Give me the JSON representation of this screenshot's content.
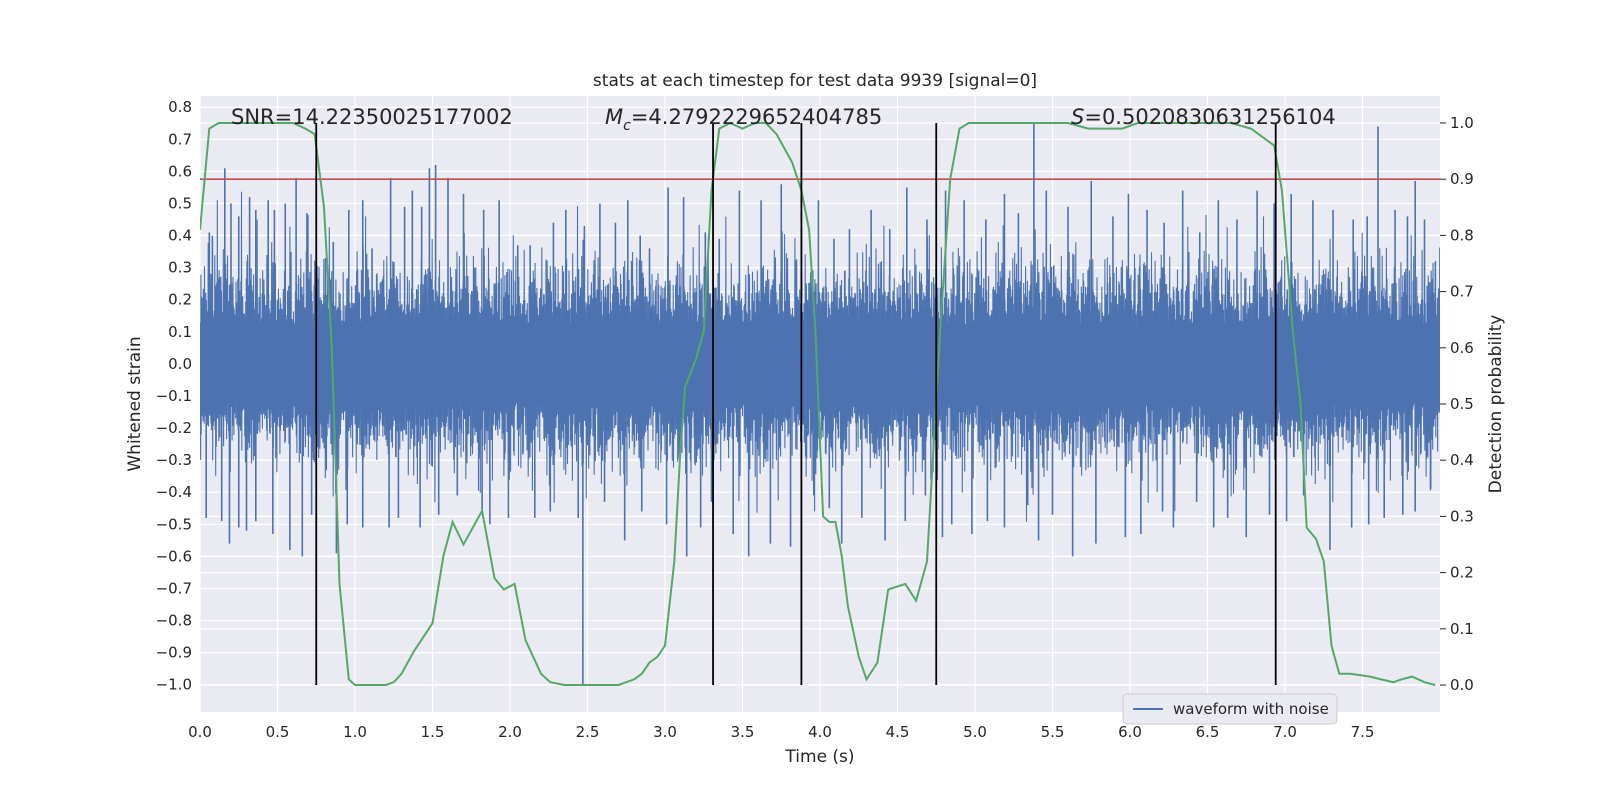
{
  "chart_data": {
    "type": "line",
    "title": "stats at each timestep for test data 9939 [signal=0]",
    "xlabel": "Time (s)",
    "ylabel": "Whitened strain",
    "y2label": "Detection probability",
    "xlim": [
      0.0,
      8.0
    ],
    "ylim": [
      -1.085,
      0.835
    ],
    "y2lim": [
      -0.048,
      1.048
    ],
    "xticks": [
      0.0,
      0.5,
      1.0,
      1.5,
      2.0,
      2.5,
      3.0,
      3.5,
      4.0,
      4.5,
      5.0,
      5.5,
      6.0,
      6.5,
      7.0,
      7.5
    ],
    "xtick_labels": [
      "0.0",
      "0.5",
      "1.0",
      "1.5",
      "2.0",
      "2.5",
      "3.0",
      "3.5",
      "4.0",
      "4.5",
      "5.0",
      "5.5",
      "6.0",
      "6.5",
      "7.0",
      "7.5"
    ],
    "yticks": [
      0.8,
      0.7,
      0.6,
      0.5,
      0.4,
      0.3,
      0.2,
      0.1,
      0.0,
      -0.1,
      -0.2,
      -0.3,
      -0.4,
      -0.5,
      -0.6,
      -0.7,
      -0.8,
      -0.9,
      -1.0
    ],
    "ytick_labels": [
      "0.8",
      "0.7",
      "0.6",
      "0.5",
      "0.4",
      "0.3",
      "0.2",
      "0.1",
      "0.0",
      "−0.1",
      "−0.2",
      "−0.3",
      "−0.4",
      "−0.5",
      "−0.6",
      "−0.7",
      "−0.8",
      "−0.9",
      "−1.0"
    ],
    "y2ticks": [
      1.0,
      0.9,
      0.8,
      0.7,
      0.6,
      0.5,
      0.4,
      0.3,
      0.2,
      0.1,
      0.0
    ],
    "y2tick_labels": [
      "1.0",
      "0.9",
      "0.8",
      "0.7",
      "0.6",
      "0.5",
      "0.4",
      "0.3",
      "0.2",
      "0.1",
      "0.0"
    ],
    "grid": true,
    "annotations": {
      "snr": "SNR=14.22350025177002",
      "mc_symbol": "M",
      "mc_subscript": "c",
      "mc_value": "=4.279222965240478 5",
      "s_symbol": "S",
      "s_value": "=0.5020830631256104"
    },
    "waveform": {
      "name": "waveform with noise",
      "color": "#4c72b0",
      "core_amplitude": 0.22,
      "seed": 9939,
      "spikes_up": [
        [
          0.06,
          0.41
        ],
        [
          0.08,
          0.4
        ],
        [
          0.16,
          0.61
        ],
        [
          0.2,
          0.5
        ],
        [
          0.25,
          0.46
        ],
        [
          0.32,
          0.52
        ],
        [
          0.36,
          0.48
        ],
        [
          0.44,
          0.51
        ],
        [
          0.48,
          0.48
        ],
        [
          0.55,
          0.5
        ],
        [
          0.62,
          0.58
        ],
        [
          0.69,
          0.47
        ],
        [
          0.81,
          0.33
        ],
        [
          0.86,
          0.38
        ],
        [
          0.96,
          0.48
        ],
        [
          1.05,
          0.51
        ],
        [
          1.11,
          0.36
        ],
        [
          1.23,
          0.58
        ],
        [
          1.32,
          0.49
        ],
        [
          1.37,
          0.54
        ],
        [
          1.43,
          0.49
        ],
        [
          1.48,
          0.61
        ],
        [
          1.52,
          0.62
        ],
        [
          1.6,
          0.58
        ],
        [
          1.7,
          0.53
        ],
        [
          1.83,
          0.48
        ],
        [
          1.93,
          0.51
        ],
        [
          2.05,
          0.37
        ],
        [
          2.13,
          0.37
        ],
        [
          2.28,
          0.44
        ],
        [
          2.36,
          0.48
        ],
        [
          2.48,
          0.43
        ],
        [
          2.58,
          0.5
        ],
        [
          2.68,
          0.44
        ],
        [
          2.76,
          0.51
        ],
        [
          2.84,
          0.4
        ],
        [
          2.9,
          0.36
        ],
        [
          3.02,
          0.55
        ],
        [
          3.12,
          0.52
        ],
        [
          3.26,
          0.41
        ],
        [
          3.35,
          0.39
        ],
        [
          3.48,
          0.54
        ],
        [
          3.62,
          0.51
        ],
        [
          3.75,
          0.56
        ],
        [
          3.88,
          0.48
        ],
        [
          3.99,
          0.51
        ],
        [
          4.09,
          0.39
        ],
        [
          4.19,
          0.42
        ],
        [
          4.33,
          0.48
        ],
        [
          4.45,
          0.42
        ],
        [
          4.56,
          0.55
        ],
        [
          4.69,
          0.45
        ],
        [
          4.81,
          0.54
        ],
        [
          4.93,
          0.51
        ],
        [
          5.07,
          0.45
        ],
        [
          5.19,
          0.53
        ],
        [
          5.28,
          0.47
        ],
        [
          5.38,
          0.75
        ],
        [
          5.46,
          0.54
        ],
        [
          5.6,
          0.49
        ],
        [
          5.75,
          0.57
        ],
        [
          5.89,
          0.46
        ],
        [
          5.99,
          0.53
        ],
        [
          6.11,
          0.48
        ],
        [
          6.22,
          0.44
        ],
        [
          6.34,
          0.54
        ],
        [
          6.45,
          0.41
        ],
        [
          6.57,
          0.51
        ],
        [
          6.69,
          0.45
        ],
        [
          6.82,
          0.54
        ],
        [
          6.93,
          0.5
        ],
        [
          7.04,
          0.53
        ],
        [
          7.18,
          0.51
        ],
        [
          7.31,
          0.48
        ],
        [
          7.44,
          0.45
        ],
        [
          7.53,
          0.46
        ],
        [
          7.6,
          0.74
        ],
        [
          7.71,
          0.48
        ],
        [
          7.79,
          0.46
        ],
        [
          7.84,
          0.57
        ],
        [
          7.9,
          0.45
        ],
        [
          7.97,
          0.32
        ]
      ],
      "spikes_down": [
        [
          0.04,
          -0.48
        ],
        [
          0.14,
          -0.49
        ],
        [
          0.19,
          -0.56
        ],
        [
          0.25,
          -0.51
        ],
        [
          0.3,
          -0.52
        ],
        [
          0.36,
          -0.49
        ],
        [
          0.47,
          -0.53
        ],
        [
          0.58,
          -0.58
        ],
        [
          0.66,
          -0.6
        ],
        [
          0.72,
          -0.47
        ],
        [
          0.88,
          -0.59
        ],
        [
          0.95,
          -0.5
        ],
        [
          1.05,
          -0.51
        ],
        [
          1.22,
          -0.51
        ],
        [
          1.28,
          -0.48
        ],
        [
          1.42,
          -0.51
        ],
        [
          1.54,
          -0.47
        ],
        [
          1.66,
          -0.41
        ],
        [
          1.82,
          -0.46
        ],
        [
          1.87,
          -0.5
        ],
        [
          1.99,
          -0.48
        ],
        [
          2.16,
          -0.48
        ],
        [
          2.26,
          -0.46
        ],
        [
          2.44,
          -0.48
        ],
        [
          2.47,
          -1.0
        ],
        [
          2.61,
          -0.43
        ],
        [
          2.74,
          -0.55
        ],
        [
          2.85,
          -0.46
        ],
        [
          3.01,
          -0.5
        ],
        [
          3.14,
          -0.6
        ],
        [
          3.23,
          -0.51
        ],
        [
          3.3,
          -0.43
        ],
        [
          3.44,
          -0.53
        ],
        [
          3.54,
          -0.6
        ],
        [
          3.68,
          -0.56
        ],
        [
          3.81,
          -0.57
        ],
        [
          3.96,
          -0.41
        ],
        [
          4.06,
          -0.45
        ],
        [
          4.14,
          -0.56
        ],
        [
          4.27,
          -0.48
        ],
        [
          4.42,
          -0.55
        ],
        [
          4.55,
          -0.49
        ],
        [
          4.68,
          -0.41
        ],
        [
          4.79,
          -0.54
        ],
        [
          4.85,
          -0.5
        ],
        [
          4.98,
          -0.53
        ],
        [
          5.08,
          -0.49
        ],
        [
          5.19,
          -0.51
        ],
        [
          5.34,
          -0.44
        ],
        [
          5.41,
          -0.55
        ],
        [
          5.5,
          -0.47
        ],
        [
          5.63,
          -0.6
        ],
        [
          5.78,
          -0.56
        ],
        [
          5.97,
          -0.54
        ],
        [
          6.07,
          -0.53
        ],
        [
          6.21,
          -0.46
        ],
        [
          6.28,
          -0.51
        ],
        [
          6.43,
          -0.43
        ],
        [
          6.54,
          -0.51
        ],
        [
          6.63,
          -0.48
        ],
        [
          6.75,
          -0.54
        ],
        [
          6.9,
          -0.47
        ],
        [
          7.01,
          -0.49
        ],
        [
          7.12,
          -0.41
        ],
        [
          7.29,
          -0.58
        ],
        [
          7.43,
          -0.51
        ],
        [
          7.54,
          -0.5
        ],
        [
          7.64,
          -0.48
        ],
        [
          7.76,
          -0.47
        ],
        [
          7.84,
          -0.46
        ],
        [
          7.94,
          -0.39
        ]
      ]
    },
    "detection_probability": {
      "color": "#55a868",
      "axis": "right",
      "x": [
        0.0,
        0.06,
        0.12,
        0.2,
        0.3,
        0.4,
        0.5,
        0.6,
        0.68,
        0.74,
        0.8,
        0.85,
        0.9,
        0.96,
        1.0,
        1.1,
        1.2,
        1.25,
        1.3,
        1.38,
        1.5,
        1.57,
        1.63,
        1.7,
        1.82,
        1.9,
        1.96,
        2.03,
        2.1,
        2.2,
        2.26,
        2.35,
        2.5,
        2.6,
        2.7,
        2.8,
        2.85,
        2.9,
        2.95,
        3.0,
        3.06,
        3.1,
        3.13,
        3.2,
        3.25,
        3.3,
        3.35,
        3.42,
        3.5,
        3.58,
        3.65,
        3.72,
        3.76,
        3.82,
        3.88,
        3.93,
        3.97,
        4.02,
        4.06,
        4.1,
        4.14,
        4.18,
        4.25,
        4.3,
        4.37,
        4.44,
        4.55,
        4.62,
        4.69,
        4.75,
        4.78,
        4.84,
        4.9,
        4.96,
        5.05,
        5.15,
        5.3,
        5.45,
        5.6,
        5.73,
        5.87,
        5.95,
        6.05,
        6.15,
        6.3,
        6.45,
        6.65,
        6.78,
        6.88,
        6.93,
        6.98,
        7.05,
        7.1,
        7.14,
        7.2,
        7.25,
        7.3,
        7.35,
        7.42,
        7.55,
        7.62,
        7.7,
        7.75,
        7.82,
        7.9,
        7.97
      ],
      "y": [
        0.81,
        0.99,
        1.0,
        1.0,
        1.0,
        1.0,
        1.0,
        1.0,
        0.99,
        0.98,
        0.85,
        0.6,
        0.18,
        0.01,
        0.0,
        0.0,
        0.0,
        0.005,
        0.02,
        0.06,
        0.11,
        0.23,
        0.29,
        0.25,
        0.31,
        0.19,
        0.17,
        0.18,
        0.08,
        0.02,
        0.005,
        0.0,
        0.0,
        0.0,
        0.0,
        0.01,
        0.02,
        0.04,
        0.05,
        0.07,
        0.22,
        0.42,
        0.53,
        0.58,
        0.63,
        0.88,
        0.99,
        1.0,
        0.99,
        1.0,
        1.0,
        0.98,
        0.96,
        0.93,
        0.88,
        0.81,
        0.63,
        0.3,
        0.29,
        0.29,
        0.23,
        0.14,
        0.05,
        0.01,
        0.04,
        0.17,
        0.18,
        0.15,
        0.22,
        0.51,
        0.65,
        0.9,
        0.99,
        1.0,
        1.0,
        1.0,
        1.0,
        1.0,
        1.0,
        0.99,
        0.99,
        0.99,
        1.0,
        1.0,
        1.0,
        1.0,
        1.0,
        0.99,
        0.97,
        0.96,
        0.88,
        0.63,
        0.5,
        0.28,
        0.26,
        0.22,
        0.07,
        0.02,
        0.02,
        0.015,
        0.01,
        0.005,
        0.01,
        0.015,
        0.005,
        0.0
      ]
    },
    "threshold": {
      "value": 0.9,
      "axis": "right",
      "color": "#c44e52"
    },
    "vlines": [
      0.75,
      3.31,
      3.88,
      4.75,
      6.94
    ],
    "vline_color": "#000000",
    "legend": {
      "position": "lower-right",
      "label": "waveform with noise"
    }
  }
}
